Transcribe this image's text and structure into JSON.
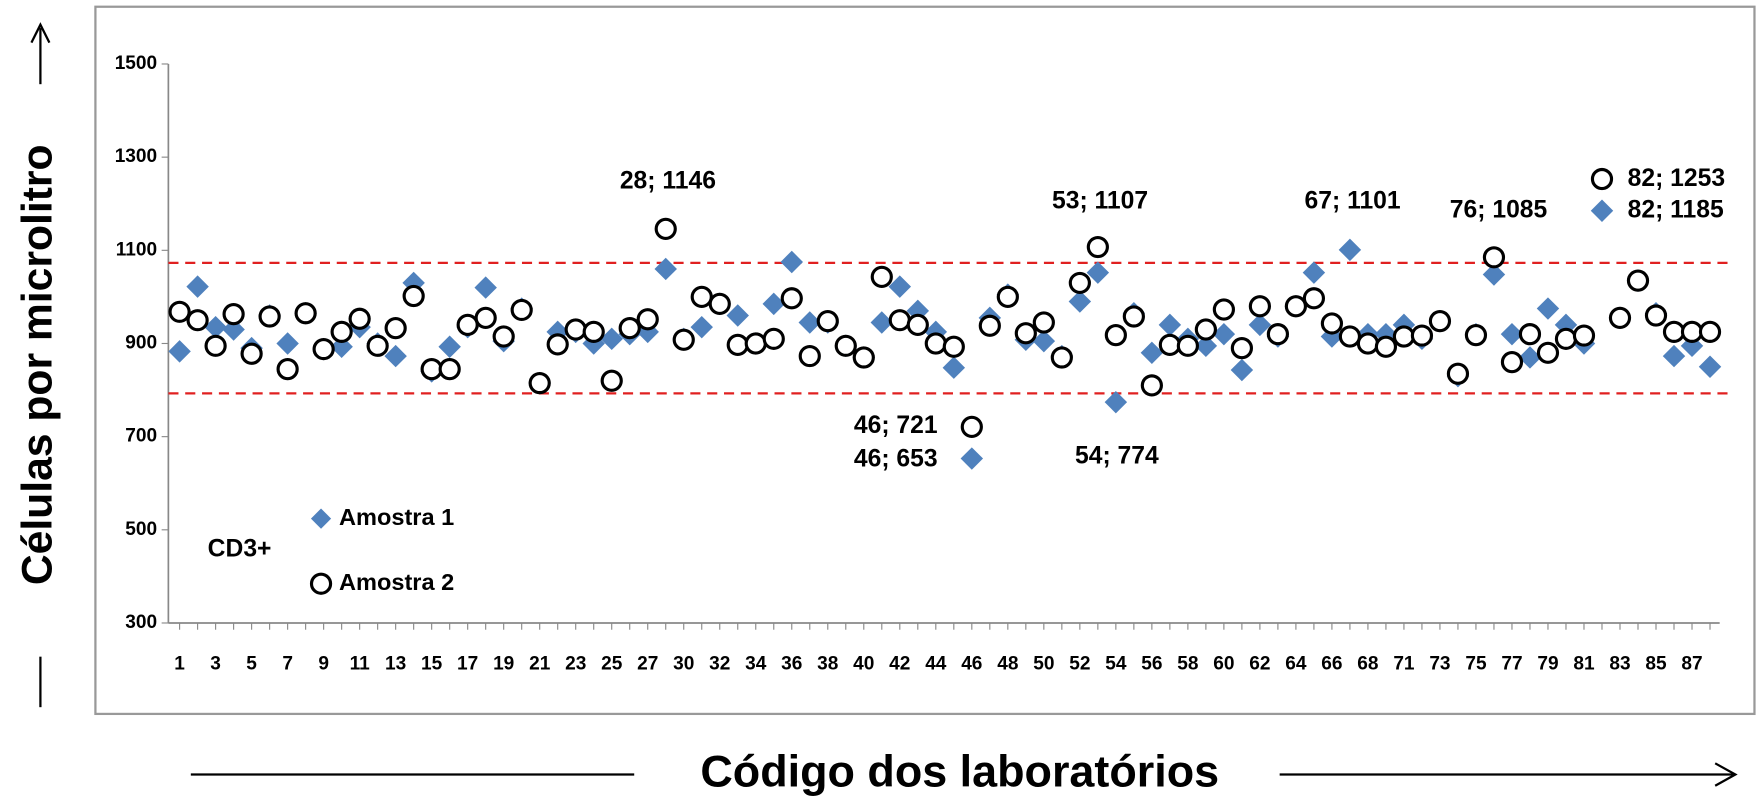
{
  "chart_data": {
    "type": "scatter",
    "y_label": "Células por microlitro",
    "x_label": "Código dos laboratórios",
    "inner_label": "CD3+",
    "ylim": [
      300,
      1500
    ],
    "yticks": [
      300,
      500,
      700,
      900,
      1100,
      1300,
      1500
    ],
    "categories": [
      "1",
      null,
      "3",
      null,
      "5",
      null,
      "7",
      null,
      "9",
      null,
      "11",
      null,
      "13",
      null,
      "15",
      null,
      "17",
      null,
      "19",
      null,
      "21",
      null,
      "23",
      null,
      "25",
      null,
      "27",
      null,
      "30",
      null,
      "32",
      null,
      "34",
      null,
      "36",
      null,
      "38",
      null,
      "40",
      null,
      "42",
      null,
      "44",
      null,
      "46",
      null,
      "48",
      null,
      "50",
      null,
      "52",
      null,
      "54",
      null,
      "56",
      null,
      "58",
      null,
      "60",
      null,
      "62",
      null,
      "64",
      null,
      "66",
      null,
      "68",
      null,
      "71",
      null,
      "73",
      null,
      "75",
      null,
      "77",
      null,
      "79",
      null,
      "81",
      null,
      "83",
      null,
      "85",
      null,
      "87",
      null
    ],
    "series": [
      {
        "name": "Amostra 1",
        "color": "#4f81bd",
        "marker": "diamond",
        "values": [
          883,
          1022,
          935,
          930,
          890,
          960,
          900,
          965,
          888,
          893,
          935,
          900,
          873,
          1030,
          840,
          893,
          935,
          1020,
          905,
          975,
          815,
          925,
          925,
          900,
          910,
          920,
          925,
          1060,
          910,
          935,
          985,
          960,
          900,
          985,
          1075,
          945,
          945,
          895,
          870,
          945,
          1022,
          970,
          925,
          848,
          653,
          955,
          1005,
          908,
          905,
          873,
          990,
          1052,
          774,
          965,
          880,
          940,
          910,
          895,
          920,
          843,
          940,
          915,
          980,
          1052,
          915,
          1101,
          920,
          920,
          940,
          910,
          948,
          830,
          920,
          1048,
          920,
          870,
          975,
          940,
          900,
          1185,
          955,
          1035,
          965,
          873,
          895,
          850
        ]
      },
      {
        "name": "Amostra 2",
        "color": "#000000",
        "marker": "circle",
        "values": [
          968,
          950,
          895,
          963,
          878,
          958,
          845,
          965,
          888,
          925,
          953,
          895,
          933,
          1002,
          845,
          845,
          940,
          955,
          915,
          972,
          815,
          898,
          930,
          925,
          820,
          933,
          952,
          1146,
          908,
          1000,
          985,
          897,
          900,
          910,
          997,
          873,
          948,
          895,
          870,
          1043,
          950,
          940,
          900,
          893,
          721,
          938,
          1000,
          922,
          945,
          870,
          1030,
          1107,
          918,
          958,
          810,
          897,
          895,
          930,
          973,
          890,
          980,
          920,
          980,
          997,
          943,
          915,
          900,
          893,
          915,
          917,
          948,
          835,
          918,
          1085,
          860,
          920,
          880,
          910,
          917,
          1253,
          955,
          1035,
          960,
          925,
          925,
          925
        ]
      }
    ],
    "reference_lines": [
      1073,
      793
    ],
    "reference_color": "#e02020",
    "annotations": [
      "28; 1146",
      "46; 721",
      "46; 653",
      "53; 1107",
      "54; 774",
      "67; 1101",
      "76; 1085",
      "82; 1253",
      "82; 1185"
    ]
  }
}
